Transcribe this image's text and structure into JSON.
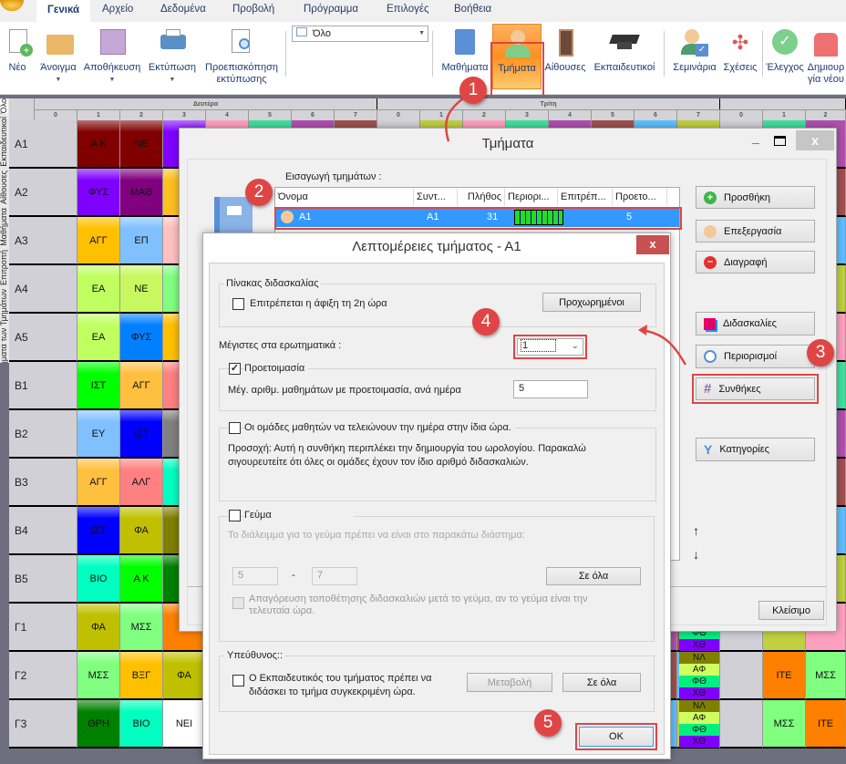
{
  "app": {
    "tabs": [
      "Γενικά",
      "Αρχείο",
      "Δεδομένα",
      "Προβολή",
      "Πρόγραμμα",
      "Επιλογές",
      "Βοήθεια"
    ],
    "active_tab": "Γενικά"
  },
  "ribbon": {
    "new": "Νέο",
    "open": "Άνοιγμα",
    "save": "Αποθήκευση",
    "print": "Εκτύπωση",
    "preview": "Προεπισκόπηση εκτύπωσης",
    "view_select": "Όλο",
    "subjects": "Μαθήματα",
    "classes": "Τμήματα",
    "rooms": "Αίθουσες",
    "teachers": "Εκπαιδευτικοί",
    "seminars": "Σεμινάρια",
    "relations": "Σχέσεις",
    "check": "Έλεγχος",
    "create_new": "Δημιουργία νέου"
  },
  "side_tabs": [
    "Όλο",
    "Εκπαιδευτικοί",
    "Αίθουσες",
    "Μαθήματα",
    "Επιτροπή",
    "Μαθήματα των Τμημάτων",
    "Προβολή"
  ],
  "timetable": {
    "days": [
      "Δευτέρα",
      "Τρίτη",
      ""
    ],
    "periods": [
      "0",
      "1",
      "2",
      "3",
      "4",
      "5",
      "6",
      "7"
    ],
    "rows": [
      {
        "label": "Α1",
        "cells": [
          {
            "t": "Α Κ",
            "c": "#800000"
          },
          {
            "t": "ΝΕ",
            "c": "#800000"
          },
          {
            "t": "Φ",
            "c": "#8000ff"
          }
        ]
      },
      {
        "label": "Α2",
        "cells": [
          {
            "t": "ΦΥΣ",
            "c": "#8000ff"
          },
          {
            "t": "ΜΑΘ",
            "c": "#800080"
          },
          {
            "t": "Α",
            "c": "#ffc020"
          }
        ]
      },
      {
        "label": "Α3",
        "cells": [
          {
            "t": "ΑΓΓ",
            "c": "#ffc000"
          },
          {
            "t": "ΕΠ",
            "c": "#80c0ff"
          },
          {
            "t": "Ι",
            "c": "#ffc0c0"
          }
        ]
      },
      {
        "label": "Α4",
        "cells": [
          {
            "t": "ΕΑ",
            "c": "#c0ff60"
          },
          {
            "t": "ΝΕ",
            "c": "#c8f860"
          },
          {
            "t": "Μ",
            "c": "#80ff80"
          }
        ]
      },
      {
        "label": "Α5",
        "cells": [
          {
            "t": "ΕΑ",
            "c": "#c0ff60"
          },
          {
            "t": "ΦΥΣ",
            "c": "#0080ff"
          },
          {
            "t": "Α",
            "c": "#ffc000"
          }
        ]
      },
      {
        "label": "Β1",
        "cells": [
          {
            "t": "ΙΣΤ",
            "c": "#00ff00"
          },
          {
            "t": "ΑΓΓ",
            "c": "#ffc040"
          },
          {
            "t": "Γ",
            "c": "#ff8080"
          }
        ]
      },
      {
        "label": "Β2",
        "cells": [
          {
            "t": "ΕΥ",
            "c": "#80c0ff"
          },
          {
            "t": "ΙΣΤ",
            "c": "#0000ff"
          },
          {
            "t": "Ι",
            "c": "#808080"
          }
        ]
      },
      {
        "label": "Β3",
        "cells": [
          {
            "t": "ΑΓΓ",
            "c": "#ffc040"
          },
          {
            "t": "ΑΛΓ",
            "c": "#ff8080"
          },
          {
            "t": "Χ",
            "c": "#00ffc0"
          }
        ]
      },
      {
        "label": "Β4",
        "cells": [
          {
            "t": "ΙΣΤ",
            "c": "#0000ff"
          },
          {
            "t": "ΦΑ",
            "c": "#c0c000"
          },
          {
            "t": "Ι",
            "c": "#808000"
          }
        ]
      },
      {
        "label": "Β5",
        "cells": [
          {
            "t": "ΒΙΟ",
            "c": "#00ffc0"
          },
          {
            "t": "Α Κ",
            "c": "#00ff00"
          },
          {
            "t": "Θ",
            "c": "#008000"
          }
        ]
      },
      {
        "label": "Γ1",
        "cells": [
          {
            "t": "ΦΑ",
            "c": "#c0c000"
          },
          {
            "t": "ΜΣΣ",
            "c": "#80ff80"
          },
          {
            "t": "Ι",
            "c": "#ff8000"
          }
        ]
      },
      {
        "label": "Γ2",
        "cells": [
          {
            "t": "ΜΣΣ",
            "c": "#80ff80"
          },
          {
            "t": "ΒΞΓ",
            "c": "#ffc000"
          },
          {
            "t": "ΦΑ",
            "c": "#c0c000"
          }
        ]
      },
      {
        "label": "Γ3",
        "cells": [
          {
            "t": "ΘΡΗ",
            "c": "#008000"
          },
          {
            "t": "ΒΙΟ",
            "c": "#00ffc0"
          },
          {
            "t": "ΝΕΙ",
            "c": "#ffffff"
          }
        ]
      }
    ],
    "stacked": [
      "ΝΛ",
      "ΑΦ",
      "ΦΘ",
      "ΧΘ"
    ],
    "right_cells": [
      {
        "row": "Γ2",
        "col1": "ΙΤΕ",
        "col2": "ΜΣΣ"
      },
      {
        "row": "Γ3",
        "col1": "ΜΣΣ",
        "col2": "ΙΤΕ"
      }
    ]
  },
  "classes_dialog": {
    "title": "Τμήματα",
    "list_label": "Εισαγωγή τμημάτων :",
    "columns": [
      "Όνομα",
      "Συντ...",
      "Πλήθος",
      "Περιορι...",
      "Επιτρέπ...",
      "Προετο..."
    ],
    "selected_row": {
      "name": "Α1",
      "short": "Α1",
      "count": "31",
      "prep": "5"
    },
    "buttons": {
      "add": "Προσθήκη",
      "edit": "Επεξεργασία",
      "delete": "Διαγραφή",
      "lessons": "Διδασκαλίες",
      "constraints": "Περιορισμοί",
      "conditions": "Συνθήκες",
      "categories": "Κατηγορίες",
      "close": "Κλείσιμο"
    },
    "up": "↑",
    "down": "↓"
  },
  "details_dialog": {
    "title": "Λεπτομέρειες τμήματος - Α1",
    "teaching_group": "Πίνακας διδασκαλίας",
    "allow_second_hour": "Επιτρέπεται η άφιξη τη 2η ώρα",
    "allow_second_hour_checked": false,
    "advanced": "Προχωρημένοι",
    "max_gaps_label": "Μέγιστες στα ερωτηματικά :",
    "max_gaps_value": "1",
    "prep_label": "Προετοιμασία",
    "prep_checked": true,
    "prep_max_label": "Μέγ. αριθμ. μαθημάτων με προετοιμασία, ανά ημέρα",
    "prep_max_value": "5",
    "same_end_label": "Οι ομάδες μαθητών να τελειώνουν την ημέρα στην ίδια ώρα.",
    "same_end_checked": false,
    "same_end_note": "Προσοχή: Αυτή η συνθήκη περιπλέκει την δημιουργία του ωρολογίου. Παρακαλώ σιγουρευτείτε ότι όλες οι ομάδες έχουν τον ίδιο αριθμό διδασκαλιών.",
    "lunch_label": "Γεύμα",
    "lunch_checked": false,
    "lunch_note": "Το διάλειμμα για το γεύμα πρέπει να είναι στο παρακάτω διάστημα:",
    "lunch_from": "5",
    "lunch_dash": "-",
    "lunch_to": "7",
    "apply_all": "Σε όλα",
    "lunch_forbid": "Απαγόρευση τοποθέτησης διδασκαλιών μετά το γεύμα, αν το γεύμα είναι την τελευταία ώρα.",
    "responsible_group": "Υπεύθυνος::",
    "responsible_label": "Ο Εκπαιδευτικός του τμήματος πρέπει να διδάσκει το τμήμα συγκεκριμένη ώρα.",
    "change": "Μεταβολή",
    "apply_all2": "Σε όλα",
    "ok": "OK"
  },
  "annotations": [
    "1",
    "2",
    "3",
    "4",
    "5"
  ],
  "colors": {
    "accent_red": "#e04545",
    "selection": "#3399ff",
    "ribbon_text": "#1f3b73"
  }
}
